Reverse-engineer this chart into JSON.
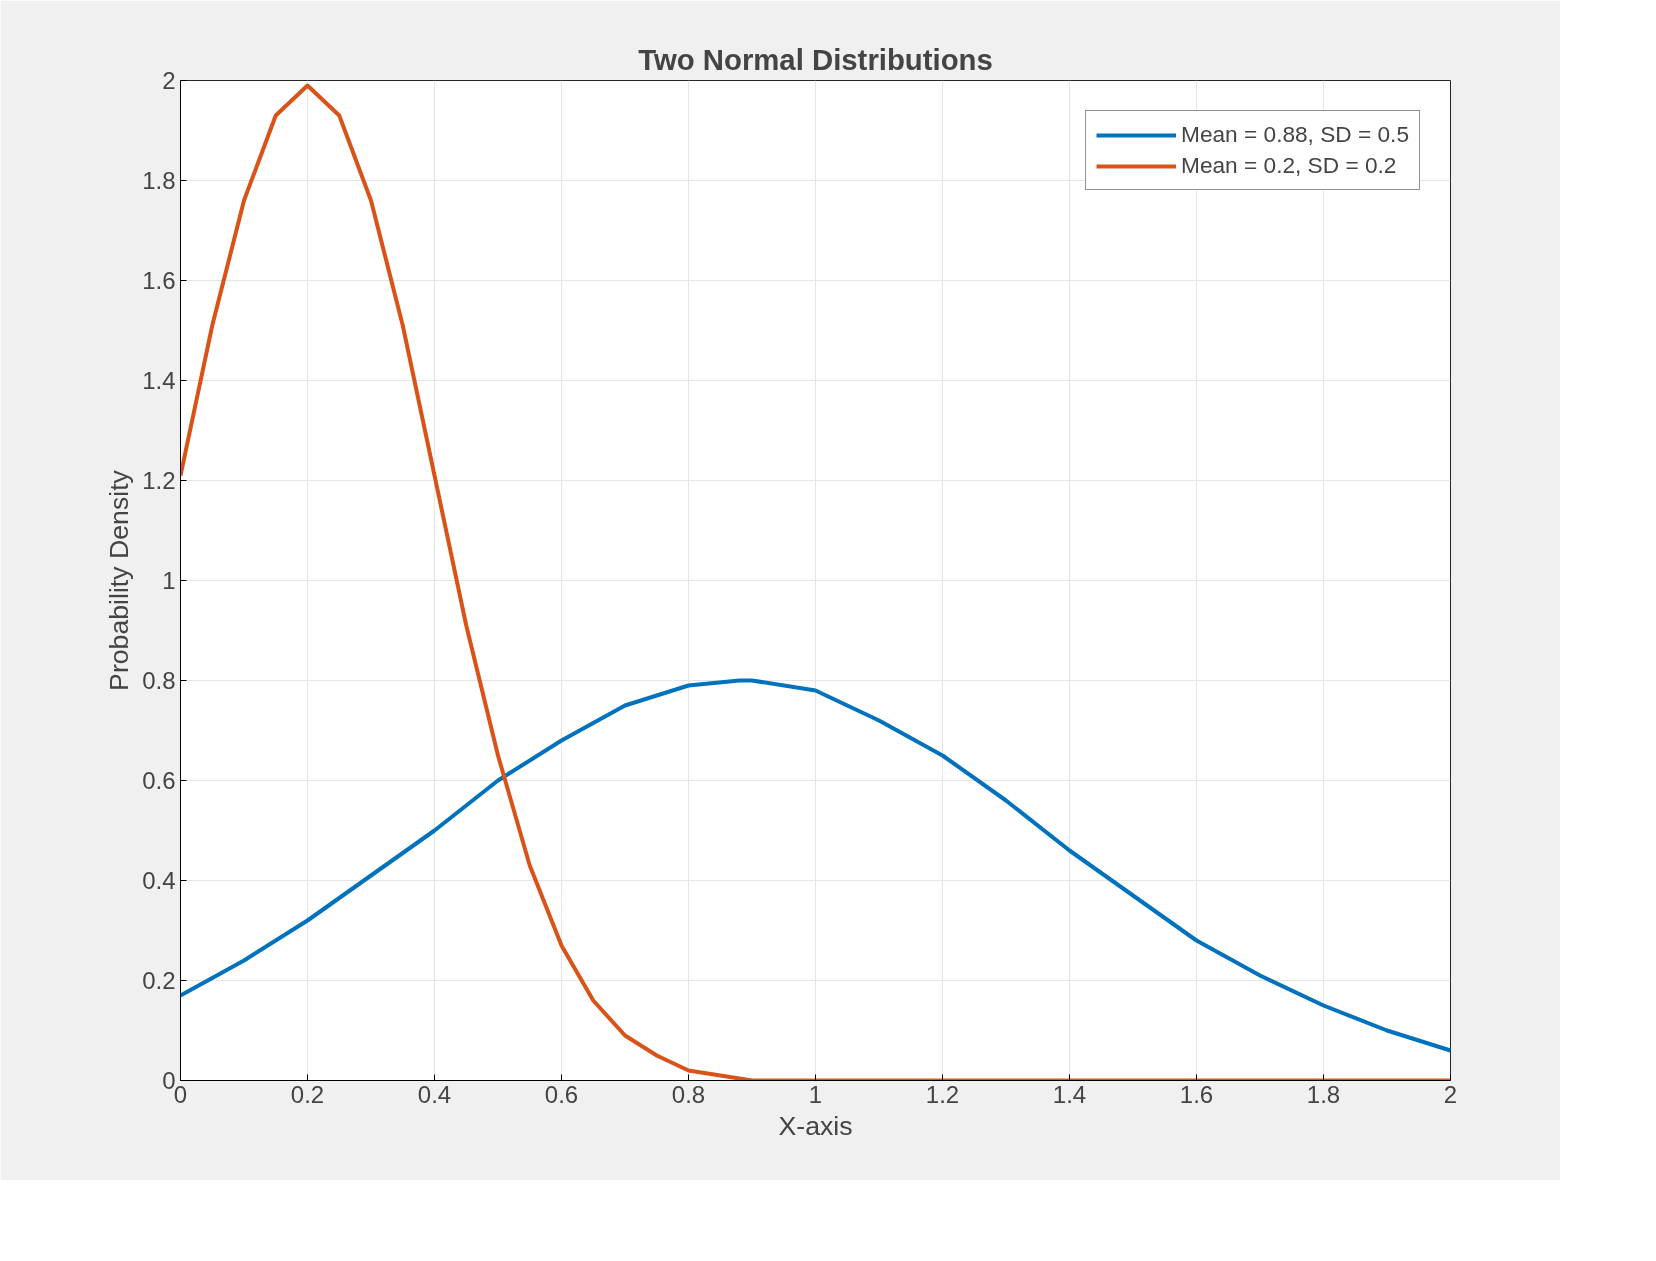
{
  "chart_data": {
    "type": "line",
    "title": "Two Normal Distributions",
    "xlabel": "X-axis",
    "ylabel": "Probability Density",
    "xlim": [
      0,
      2
    ],
    "ylim": [
      0,
      2
    ],
    "xticks": [
      0,
      0.2,
      0.4,
      0.6,
      0.8,
      1,
      1.2,
      1.4,
      1.6,
      1.8,
      2
    ],
    "yticks": [
      0,
      0.2,
      0.4,
      0.6,
      0.8,
      1,
      1.2,
      1.4,
      1.6,
      1.8,
      2
    ],
    "grid": true,
    "legend": "top right",
    "line_style": "solid",
    "marker": "none",
    "series": [
      {
        "name": "Mean = 0.88, SD = 0.5",
        "color": "#0072bd",
        "x": [
          0,
          0.1,
          0.2,
          0.3,
          0.4,
          0.5,
          0.6,
          0.7,
          0.8,
          0.88,
          0.9,
          1.0,
          1.1,
          1.2,
          1.3,
          1.4,
          1.5,
          1.6,
          1.7,
          1.8,
          1.9,
          2.0
        ],
        "values": [
          0.17,
          0.24,
          0.32,
          0.41,
          0.5,
          0.6,
          0.68,
          0.75,
          0.79,
          0.8,
          0.8,
          0.78,
          0.72,
          0.65,
          0.56,
          0.46,
          0.37,
          0.28,
          0.21,
          0.15,
          0.1,
          0.06
        ]
      },
      {
        "name": "Mean = 0.2, SD = 0.2",
        "color": "#d95319",
        "x": [
          0,
          0.05,
          0.1,
          0.15,
          0.2,
          0.25,
          0.3,
          0.35,
          0.4,
          0.45,
          0.5,
          0.55,
          0.6,
          0.65,
          0.7,
          0.75,
          0.8,
          0.9,
          1.0,
          1.2,
          1.4,
          1.6,
          1.8,
          2.0
        ],
        "values": [
          1.21,
          1.51,
          1.76,
          1.93,
          1.99,
          1.93,
          1.76,
          1.51,
          1.21,
          0.91,
          0.65,
          0.43,
          0.27,
          0.16,
          0.09,
          0.05,
          0.02,
          0,
          0,
          0,
          0,
          0,
          0,
          0
        ]
      }
    ]
  }
}
